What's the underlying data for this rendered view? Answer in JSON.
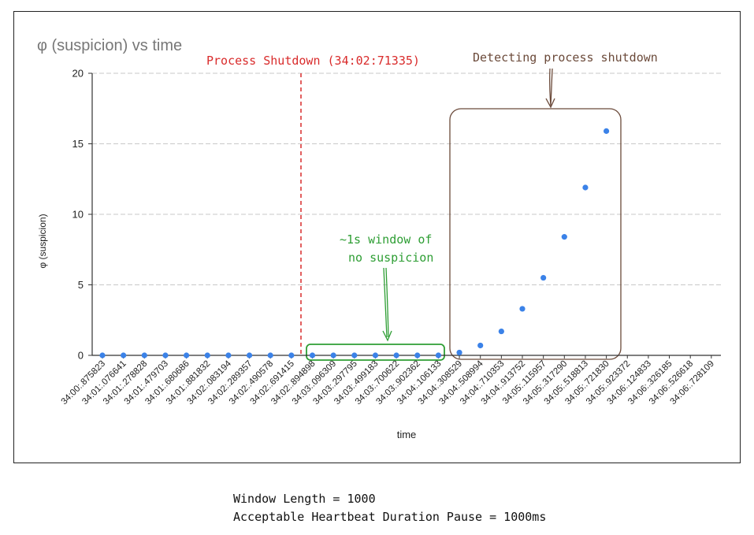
{
  "colors": {
    "points": "#3b82e8",
    "shutdown_line": "#d92b2b",
    "green": "#2e9e34",
    "brown": "#6b4a3a",
    "grid": "#c8c8c8",
    "title": "#777777"
  },
  "chart_data": {
    "type": "scatter",
    "title": "φ (suspicion) vs time",
    "xlabel": "time",
    "ylabel": "φ (suspicion)",
    "ylim": [
      0,
      20
    ],
    "yticks": [
      0,
      5,
      10,
      15,
      20
    ],
    "grid": "horizontal dashed",
    "categories": [
      "34:00:.875823",
      "34:01:.076641",
      "34:01:.278828",
      "34:01:.479703",
      "34:01:.680686",
      "34:01:.881832",
      "34:02:.083194",
      "34:02:.289357",
      "34:02:.490578",
      "34:02:.691415",
      "34:02:.894898",
      "34:03:.096309",
      "34:03:.297795",
      "34:03:.499183",
      "34:03:.700622",
      "34:03:.902362",
      "34:04:.106133",
      "34:04:.308529",
      "34:04:.508994",
      "34:04:.710353",
      "34:04:.913752",
      "34:05:.115957",
      "34:05:.317290",
      "34:05:.518813",
      "34:05:.721830",
      "34:05:.923372",
      "34:06:.124833",
      "34:06:.326185",
      "34:06:.526618",
      "34:06:.728109"
    ],
    "values": [
      0,
      0,
      0,
      0,
      0,
      0,
      0,
      0,
      0,
      0,
      0,
      0,
      0,
      0,
      0,
      0,
      0,
      0.2,
      0.7,
      1.7,
      3.3,
      5.5,
      8.4,
      11.9,
      15.9,
      null,
      null,
      null,
      null,
      null
    ],
    "annotations": {
      "shutdown_label": "Process Shutdown (34:02:71335)",
      "detect_label": "Detecting process shutdown",
      "window_label_line1": "~1s window of",
      "window_label_line2": "no suspicion"
    }
  },
  "footer": {
    "line1": "Window Length = 1000",
    "line2": "Acceptable Heartbeat Duration Pause = 1000ms"
  }
}
